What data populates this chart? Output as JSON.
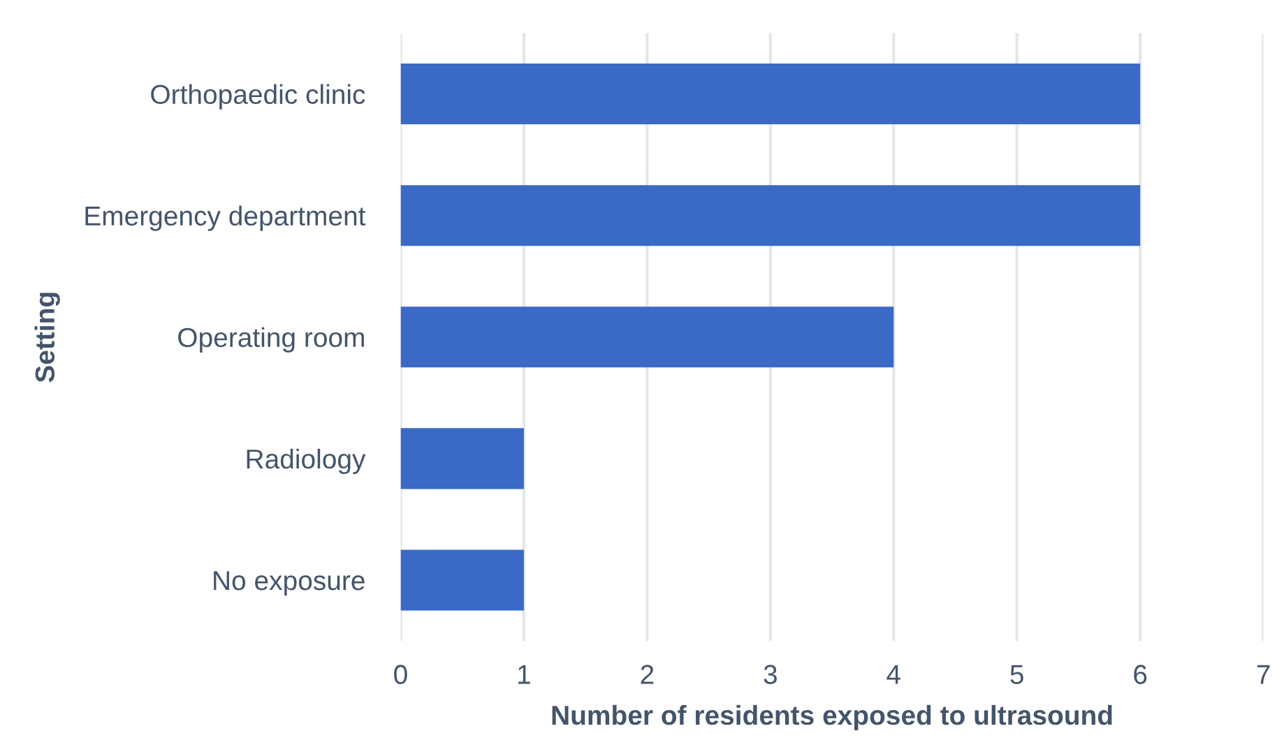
{
  "chart_data": {
    "type": "bar",
    "orientation": "horizontal",
    "categories": [
      "Orthopaedic clinic",
      "Emergency department",
      "Operating room",
      "Radiology",
      "No exposure"
    ],
    "values": [
      6,
      6,
      4,
      1,
      1
    ],
    "color": "#3a69c6",
    "xlim": [
      0,
      7
    ],
    "xticks": [
      0,
      1,
      2,
      3,
      4,
      5,
      6,
      7
    ],
    "xlabel": "Number of residents exposed to ultrasound",
    "ylabel": "Setting",
    "grid": "x",
    "legend": false
  }
}
